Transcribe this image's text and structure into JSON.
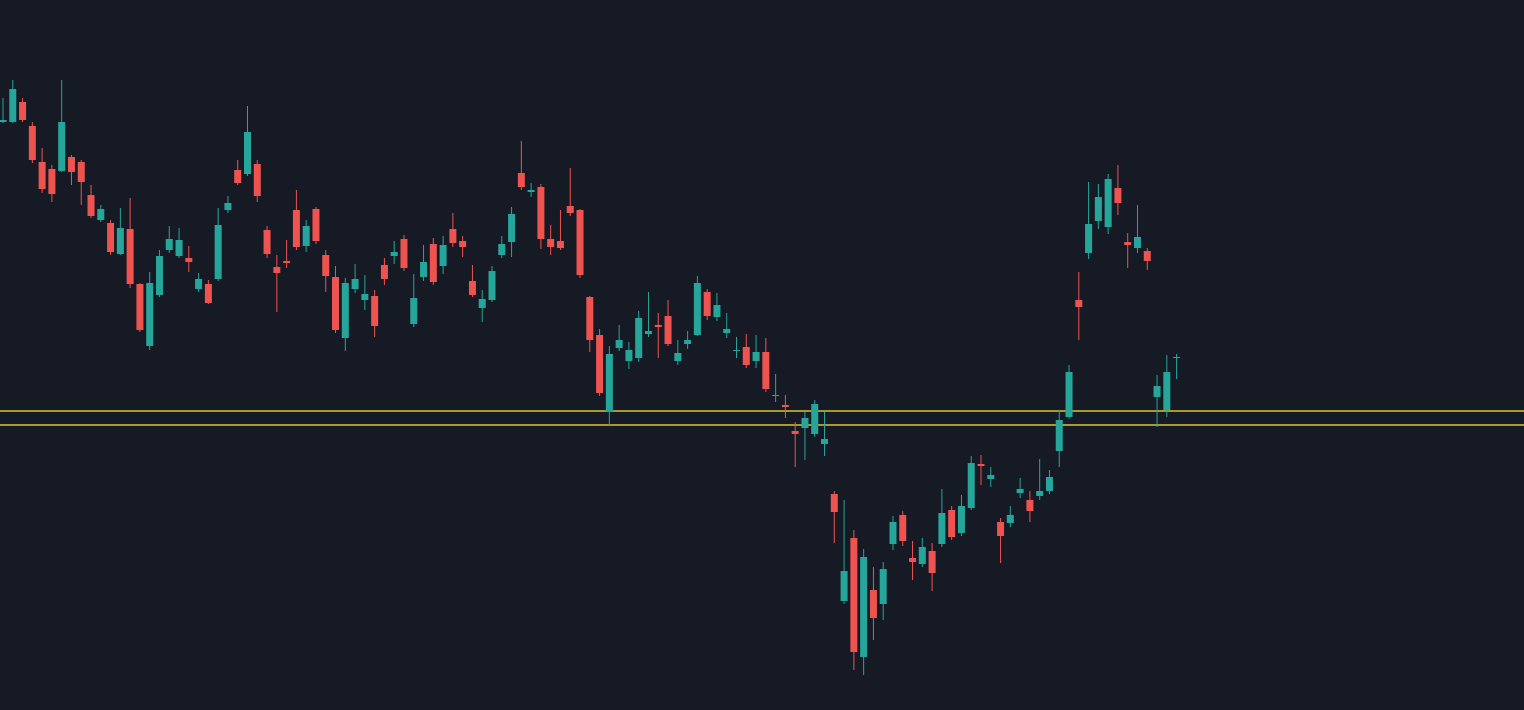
{
  "chart_data": {
    "type": "candlestick",
    "background": "#161a25",
    "up_color": "#26a69a",
    "down_color": "#ef5350",
    "ylim": [
      0,
      710
    ],
    "levels": [
      {
        "value": 299,
        "color": "#d9c435"
      },
      {
        "value": 285,
        "color": "#d9c435"
      }
    ],
    "open": [
      588,
      588,
      608,
      584,
      548,
      541,
      539,
      553,
      548,
      515,
      490,
      487,
      456,
      481,
      426,
      364,
      415,
      460,
      454,
      452,
      421,
      426,
      431,
      500,
      540,
      536,
      546,
      480,
      443,
      449,
      500,
      464,
      501,
      455,
      433,
      372,
      421,
      410,
      414,
      445,
      454,
      471,
      386,
      433,
      466,
      444,
      481,
      469,
      429,
      402,
      410,
      455,
      468,
      537,
      518,
      523,
      471,
      469,
      504,
      500,
      413,
      375,
      298,
      362,
      349,
      352,
      376,
      385,
      394,
      349,
      366,
      375,
      418,
      393,
      377,
      359,
      363,
      349,
      358,
      314,
      305,
      279,
      282,
      276,
      266,
      216,
      109,
      172,
      53,
      120,
      106,
      166,
      195,
      152,
      146,
      159,
      166,
      200,
      177,
      202,
      246,
      231,
      188,
      187,
      217,
      210,
      214,
      219,
      259,
      293,
      410,
      457,
      489,
      483,
      522,
      468,
      462,
      459,
      313,
      300,
      352
    ],
    "high": [
      612,
      630,
      612,
      588,
      562,
      545,
      630,
      555,
      550,
      525,
      505,
      490,
      502,
      512,
      427,
      438,
      460,
      484,
      482,
      464,
      437,
      430,
      502,
      514,
      550,
      604,
      550,
      484,
      455,
      470,
      520,
      490,
      503,
      460,
      444,
      432,
      446,
      435,
      420,
      452,
      469,
      475,
      436,
      465,
      472,
      474,
      497,
      474,
      445,
      420,
      444,
      474,
      503,
      569,
      527,
      526,
      485,
      500,
      542,
      501,
      414,
      381,
      364,
      385,
      368,
      399,
      418,
      397,
      410,
      370,
      379,
      434,
      421,
      417,
      397,
      373,
      376,
      375,
      372,
      336,
      315,
      288,
      298,
      310,
      298,
      219,
      210,
      180,
      161,
      143,
      148,
      194,
      199,
      169,
      172,
      167,
      221,
      204,
      215,
      254,
      255,
      243,
      192,
      204,
      232,
      219,
      251,
      240,
      300,
      345,
      438,
      528,
      526,
      536,
      545,
      477,
      505,
      462,
      335,
      355,
      356
    ],
    "low": [
      587,
      587,
      588,
      547,
      517,
      508,
      538,
      525,
      505,
      492,
      488,
      455,
      455,
      422,
      378,
      360,
      413,
      457,
      452,
      438,
      418,
      406,
      429,
      497,
      525,
      534,
      508,
      452,
      398,
      442,
      460,
      458,
      466,
      418,
      377,
      359,
      417,
      400,
      373,
      425,
      446,
      439,
      383,
      429,
      425,
      436,
      463,
      453,
      413,
      388,
      408,
      452,
      453,
      520,
      513,
      461,
      455,
      460,
      494,
      432,
      358,
      314,
      285,
      359,
      341,
      348,
      373,
      352,
      364,
      345,
      361,
      374,
      390,
      389,
      372,
      352,
      342,
      342,
      318,
      308,
      292,
      243,
      250,
      273,
      254,
      167,
      106,
      40,
      35,
      70,
      90,
      160,
      164,
      130,
      143,
      119,
      163,
      170,
      174,
      200,
      225,
      223,
      147,
      183,
      212,
      188,
      210,
      216,
      243,
      291,
      370,
      451,
      481,
      476,
      495,
      442,
      457,
      440,
      283,
      293,
      331
    ],
    "close": [
      590,
      621,
      590,
      550,
      521,
      516,
      588,
      538,
      528,
      494,
      501,
      458,
      482,
      426,
      380,
      427,
      454,
      471,
      470,
      448,
      431,
      407,
      485,
      507,
      527,
      578,
      514,
      456,
      437,
      447,
      463,
      484,
      469,
      434,
      380,
      427,
      431,
      416,
      384,
      431,
      458,
      442,
      412,
      448,
      428,
      465,
      467,
      463,
      415,
      411,
      439,
      466,
      496,
      523,
      520,
      471,
      463,
      462,
      497,
      435,
      370,
      317,
      356,
      370,
      360,
      392,
      379,
      383,
      366,
      357,
      370,
      427,
      394,
      405,
      381,
      360,
      345,
      358,
      321,
      315,
      303,
      276,
      292,
      306,
      271,
      198,
      139,
      58,
      153,
      92,
      141,
      188,
      169,
      148,
      163,
      137,
      197,
      173,
      204,
      247,
      244,
      235,
      174,
      195,
      221,
      199,
      219,
      233,
      290,
      338,
      403,
      486,
      513,
      531,
      507,
      465,
      473,
      449,
      324,
      338,
      353
    ]
  }
}
